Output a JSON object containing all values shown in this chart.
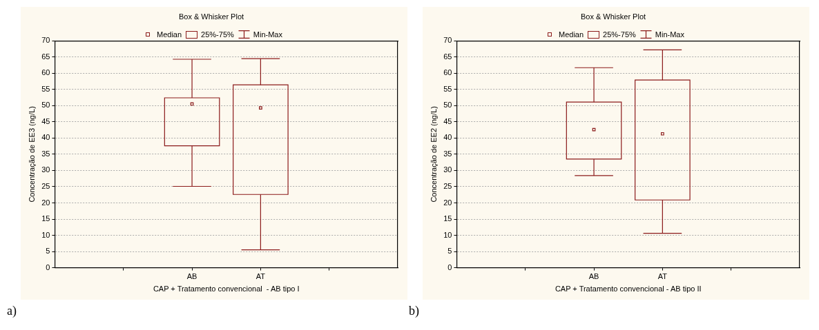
{
  "chart_data": [
    {
      "type": "box",
      "title": "Box & Whisker Plot",
      "xlabel": "CAP + Tratamento convencional  - AB tipo I",
      "ylabel": "Concentração de EE3 (ng/L)",
      "categories": [
        "AB",
        "AT"
      ],
      "color": "#8b1a1a",
      "grid": "y",
      "marker": "square",
      "ylim": [
        0,
        70
      ],
      "yticks": [
        0,
        5,
        10,
        15,
        20,
        25,
        30,
        35,
        40,
        45,
        50,
        55,
        60,
        65,
        70
      ],
      "boxes": [
        {
          "low": 25.1,
          "q1": 37.6,
          "median": 50.5,
          "q3": 52.4,
          "high": 64.3
        },
        {
          "low": 5.5,
          "q1": 22.6,
          "median": 49.3,
          "q3": 56.4,
          "high": 64.5
        }
      ],
      "annotations": [
        "Median",
        "25%-75%",
        "Min-Max",
        "a)"
      ]
    },
    {
      "type": "box",
      "title": "Box & Whisker Plot",
      "xlabel": "CAP + Tratamento convencional - AB tipo II",
      "ylabel": "Concentração de EE2 (ng/L)",
      "categories": [
        "AB",
        "AT"
      ],
      "color": "#8b1a1a",
      "grid": "y",
      "marker": "square",
      "ylim": [
        0,
        70
      ],
      "yticks": [
        0,
        5,
        10,
        15,
        20,
        25,
        30,
        35,
        40,
        45,
        50,
        55,
        60,
        65,
        70
      ],
      "boxes": [
        {
          "low": 28.4,
          "q1": 33.5,
          "median": 42.6,
          "q3": 51.1,
          "high": 61.7
        },
        {
          "low": 10.6,
          "q1": 20.9,
          "median": 41.3,
          "q3": 57.9,
          "high": 67.2
        }
      ],
      "annotations": [
        "Median",
        "25%-75%",
        "Min-Max",
        "b)"
      ]
    }
  ]
}
